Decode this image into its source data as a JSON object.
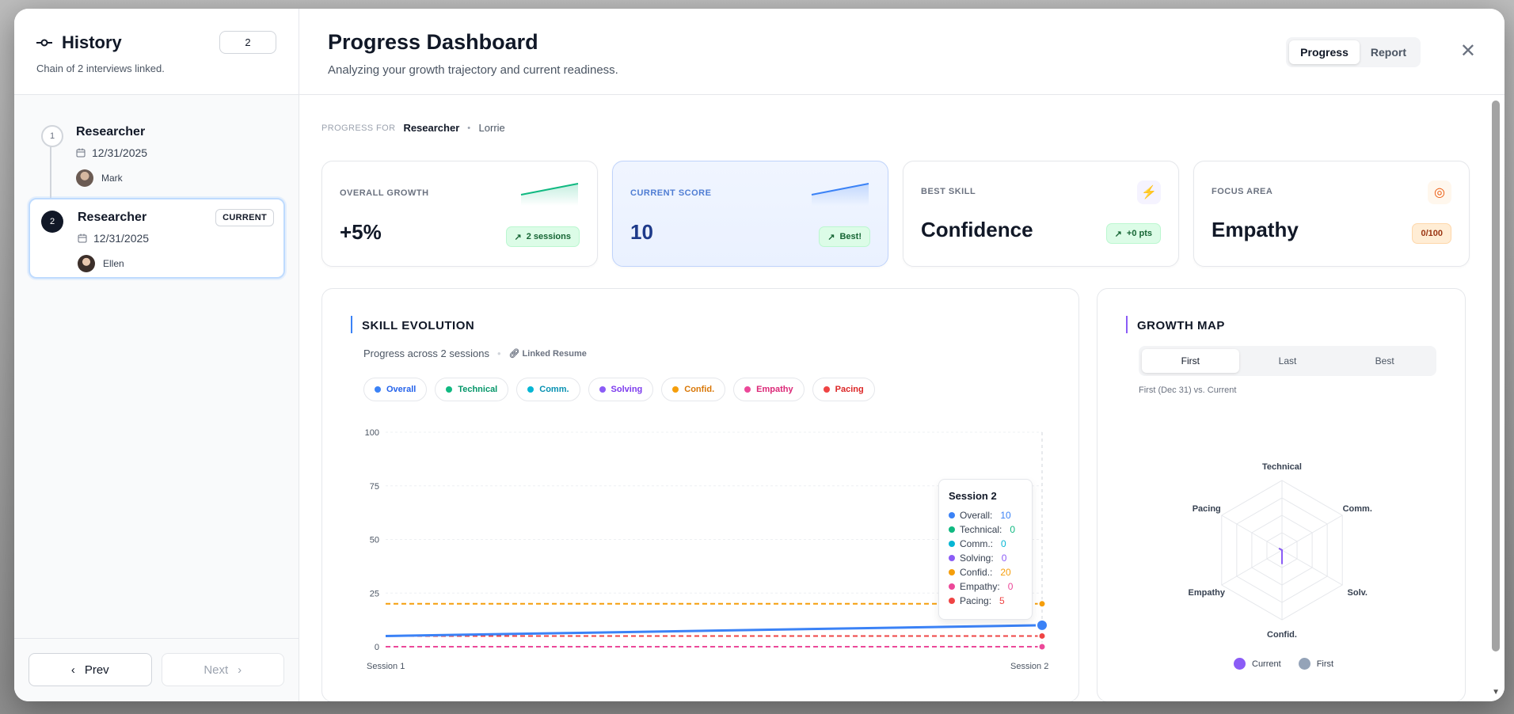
{
  "sidebar": {
    "title": "History",
    "subtitle": "Chain of 2 interviews linked.",
    "count": "2",
    "items": [
      {
        "num": "1",
        "role": "Researcher",
        "date": "12/31/2025",
        "person": "Mark"
      },
      {
        "num": "2",
        "role": "Researcher",
        "date": "12/31/2025",
        "person": "Ellen",
        "badge": "CURRENT"
      }
    ],
    "prev": "Prev",
    "next": "Next"
  },
  "header": {
    "title": "Progress Dashboard",
    "subtitle": "Analyzing your growth trajectory and current readiness.",
    "tabs": [
      "Progress",
      "Report"
    ]
  },
  "breadcrumb": {
    "label": "PROGRESS FOR",
    "role": "Researcher",
    "name": "Lorrie"
  },
  "cards": [
    {
      "label": "OVERALL GROWTH",
      "value": "+5%",
      "pill": "2 sessions"
    },
    {
      "label": "CURRENT SCORE",
      "value": "10",
      "pill": "Best!"
    },
    {
      "label": "BEST SKILL",
      "value": "Confidence",
      "pill": "+0 pts"
    },
    {
      "label": "FOCUS AREA",
      "value": "Empathy",
      "pill": "0/100"
    }
  ],
  "skill": {
    "title": "SKILL EVOLUTION",
    "subtitle": "Progress across 2 sessions",
    "link": "Linked Resume",
    "chips": [
      "Overall",
      "Technical",
      "Comm.",
      "Solving",
      "Confid.",
      "Empathy",
      "Pacing"
    ]
  },
  "colors": {
    "Overall": "#3b82f6",
    "Technical": "#10b981",
    "Comm.": "#06b6d4",
    "Solving": "#8b5cf6",
    "Confid.": "#f59e0b",
    "Empathy": "#ec4899",
    "Pacing": "#ef4444"
  },
  "tooltip": {
    "title": "Session 2",
    "rows": [
      {
        "label": "Overall:",
        "value": "10"
      },
      {
        "label": "Technical:",
        "value": "0"
      },
      {
        "label": "Comm.:",
        "value": "0"
      },
      {
        "label": "Solving:",
        "value": "0"
      },
      {
        "label": "Confid.:",
        "value": "20"
      },
      {
        "label": "Empathy:",
        "value": "0"
      },
      {
        "label": "Pacing:",
        "value": "5"
      }
    ]
  },
  "growth": {
    "title": "GROWTH MAP",
    "tabs": [
      "First",
      "Last",
      "Best"
    ],
    "note": "First (Dec 31) vs. Current",
    "axes": [
      "Technical",
      "Comm.",
      "Solv.",
      "Confid.",
      "Empathy",
      "Pacing"
    ],
    "legend": [
      "Current",
      "First"
    ]
  },
  "chart_data": [
    {
      "type": "line",
      "x": [
        "Session 1",
        "Session 2"
      ],
      "ylim": [
        0,
        100
      ],
      "yticks": [
        0,
        25,
        50,
        75,
        100
      ],
      "series": [
        {
          "name": "Overall",
          "values": [
            5,
            10
          ]
        },
        {
          "name": "Technical",
          "values": [
            0,
            0
          ]
        },
        {
          "name": "Comm.",
          "values": [
            0,
            0
          ]
        },
        {
          "name": "Solving",
          "values": [
            0,
            0
          ]
        },
        {
          "name": "Confid.",
          "values": [
            20,
            20
          ]
        },
        {
          "name": "Empathy",
          "values": [
            0,
            0
          ]
        },
        {
          "name": "Pacing",
          "values": [
            5,
            5
          ]
        }
      ]
    },
    {
      "type": "radar",
      "axes": [
        "Technical",
        "Comm.",
        "Solv.",
        "Confid.",
        "Empathy",
        "Pacing"
      ],
      "series": [
        {
          "name": "Current",
          "values": [
            0,
            0,
            0,
            20,
            0,
            5
          ]
        },
        {
          "name": "First",
          "values": [
            0,
            0,
            0,
            20,
            0,
            5
          ]
        }
      ]
    }
  ]
}
